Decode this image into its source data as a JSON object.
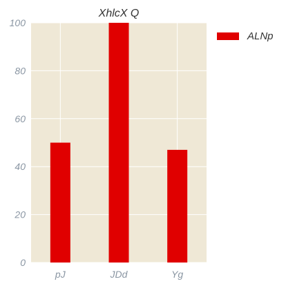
{
  "chart_data": {
    "type": "bar",
    "title": "XhlcX Q",
    "categories": [
      "pJ",
      "JDd",
      "Yg"
    ],
    "series": [
      {
        "name": "ALNp",
        "values": [
          50,
          100,
          47
        ],
        "color": "#e00000"
      }
    ],
    "xlabel": "",
    "ylabel": "",
    "ylim": [
      0,
      100
    ],
    "yticks": [
      0,
      20,
      40,
      60,
      80,
      100
    ],
    "grid": true,
    "legend_position": "top-right outside",
    "background_color": "#efe8d6",
    "grid_color": "#ffffff"
  }
}
